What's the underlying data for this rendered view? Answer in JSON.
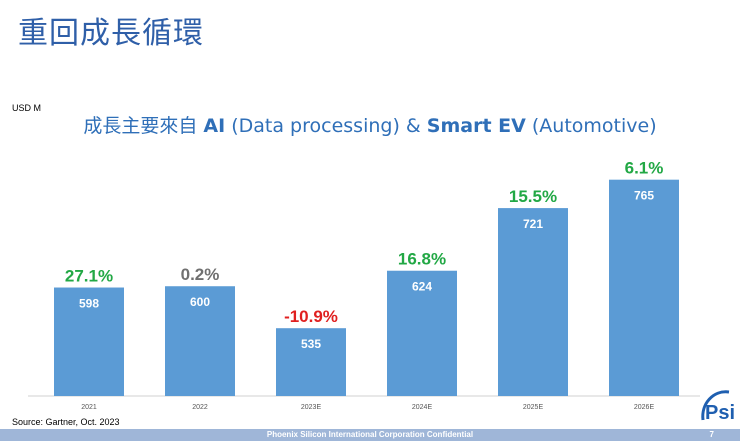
{
  "slide": {
    "title": "重回成長循環",
    "unit": "USD M",
    "subtitle_pre": "成長主要來自 ",
    "subtitle_ai": "AI",
    "subtitle_mid": " (Data processing) & ",
    "subtitle_ev": "Smart EV",
    "subtitle_post": " (Automotive)",
    "source": "Source: Gartner, Oct. 2023",
    "footer": "Phoenix Silicon International Corporation Confidential",
    "page_number": "7",
    "logo_text": "Psi"
  },
  "colors": {
    "bar": "#5b9bd5",
    "positive": "#22a845",
    "neutral": "#707070",
    "negative": "#e02020",
    "title": "#2f5fa8"
  },
  "chart_data": {
    "type": "bar",
    "categories": [
      "2021",
      "2022",
      "2023E",
      "2024E",
      "2025E",
      "2026E"
    ],
    "values": [
      598,
      600,
      535,
      624,
      721,
      765
    ],
    "growth_labels": [
      "27.1%",
      "0.2%",
      "-10.9%",
      "16.8%",
      "15.5%",
      "6.1%"
    ],
    "growth_colors": [
      "#22a845",
      "#707070",
      "#e02020",
      "#22a845",
      "#22a845",
      "#22a845"
    ],
    "ylabel": "USD M",
    "ylim": [
      430,
      780
    ],
    "grid": false,
    "legend": "none"
  }
}
